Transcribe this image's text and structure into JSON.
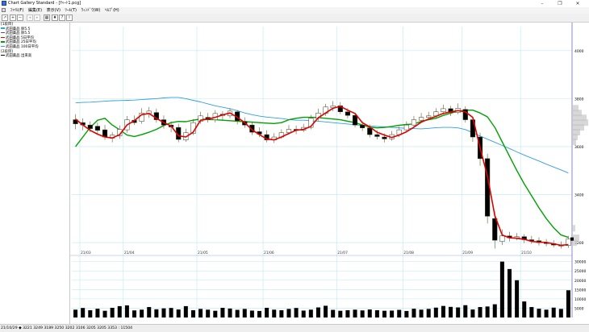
{
  "window": {
    "title": "Chart Gallery Standard - [ﾁｬｰﾄ1.pcg]",
    "controls": [
      "–",
      "❐",
      "✕"
    ]
  },
  "menu": {
    "items": [
      "ﾌｧｲﾙ(F)",
      "編集(E)",
      "表示(V)",
      "ﾂｰﾙ(T)",
      "ｳｨﾝﾄﾞｳ(W)",
      "ﾍﾙﾌﾟ(H)"
    ]
  },
  "toolbar": {
    "icons": [
      "chart-type-icon",
      "zoom-in-icon",
      "zoom-out-icon",
      "back-icon",
      "forward-icon",
      "settings-icon",
      "pin-icon",
      "help-icon",
      "info-icon"
    ]
  },
  "left_panel": {
    "rows": [
      {
        "text": "[1段目]",
        "color": ""
      },
      {
        "text": "武田薬品 卵5.5",
        "color": "#2ea0e0"
      },
      {
        "text": "武田薬品 卵5.5",
        "color": "#555555"
      },
      {
        "text": "武田薬品 5日平均",
        "color": "#e00000"
      },
      {
        "text": "武田薬品 25日平均",
        "color": "#00a000"
      },
      {
        "text": "武田薬品 100日平均",
        "color": "#2ea0e0"
      },
      {
        "text": "[2段目]",
        "color": ""
      },
      {
        "text": "武田薬品 出来高",
        "color": "#000000"
      }
    ]
  },
  "chart_data": {
    "type": "candlestick",
    "x_labels": [
      "21/03",
      "21/04",
      "21/05",
      "21/06",
      "21/07",
      "21/08",
      "21/09",
      "21/10"
    ],
    "y_tick_labels": [
      "4000",
      "3800",
      "3600",
      "3400",
      "3200"
    ],
    "volume_tick_labels": [
      "30000",
      "25000",
      "20000",
      "15000",
      "10000",
      "5000"
    ],
    "colors": {
      "ma5": "#e00000",
      "ma25": "#00a000",
      "ma100": "#2ea0e0",
      "candle_up": "#ffffff",
      "candle_down": "#000000",
      "volume": "#000000",
      "grid": "#bfe7f0"
    },
    "ma5": [
      3715,
      3690,
      3668,
      3652,
      3640,
      3636,
      3650,
      3690,
      3708,
      3733,
      3738,
      3718,
      3700,
      3686,
      3645,
      3640,
      3660,
      3710,
      3715,
      3722,
      3732,
      3740,
      3722,
      3700,
      3670,
      3650,
      3632,
      3628,
      3640,
      3655,
      3668,
      3672,
      3684,
      3720,
      3740,
      3760,
      3768,
      3752,
      3738,
      3700,
      3682,
      3660,
      3648,
      3638,
      3648,
      3662,
      3681,
      3702,
      3715,
      3726,
      3738,
      3745,
      3750,
      3745,
      3722,
      3595,
      3478,
      3312,
      3232,
      3220,
      3218,
      3214,
      3205,
      3202,
      3201,
      3195,
      3189,
      3192
    ],
    "ma25": [
      3600,
      3640,
      3680,
      3710,
      3718,
      3690,
      3670,
      3648,
      3642,
      3650,
      3660,
      3672,
      3688,
      3700,
      3705,
      3704,
      3710,
      3715,
      3713,
      3712,
      3710,
      3708,
      3706,
      3704,
      3702,
      3700,
      3698,
      3696,
      3700,
      3712,
      3718,
      3722,
      3722,
      3721,
      3718,
      3715,
      3712,
      3706,
      3700,
      3690,
      3681,
      3678,
      3680,
      3684,
      3689,
      3692,
      3694,
      3705,
      3712,
      3718,
      3730,
      3739,
      3748,
      3752,
      3752,
      3740,
      3724,
      3680,
      3620,
      3560,
      3500,
      3445,
      3395,
      3345,
      3300,
      3262,
      3232,
      3222
    ],
    "ma100": [
      3782,
      3784,
      3785,
      3787,
      3789,
      3791,
      3792,
      3793,
      3794,
      3796,
      3798,
      3800,
      3803,
      3805,
      3805,
      3800,
      3793,
      3786,
      3778,
      3770,
      3764,
      3758,
      3750,
      3740,
      3733,
      3727,
      3723,
      3720,
      3717,
      3713,
      3710,
      3710,
      3708,
      3706,
      3703,
      3700,
      3697,
      3694,
      3691,
      3688,
      3686,
      3684,
      3682,
      3680,
      3678,
      3676,
      3675,
      3674,
      3676,
      3679,
      3680,
      3680,
      3678,
      3671,
      3658,
      3644,
      3631,
      3618,
      3605,
      3592,
      3578,
      3565,
      3552,
      3540,
      3527,
      3515,
      3503,
      3490
    ],
    "candles": [
      {
        "o": 3712,
        "c": 3695,
        "h": 3735,
        "l": 3672
      },
      {
        "o": 3700,
        "c": 3690,
        "h": 3718,
        "l": 3668
      },
      {
        "o": 3690,
        "c": 3675,
        "h": 3705,
        "l": 3660
      },
      {
        "o": 3685,
        "c": 3668,
        "h": 3700,
        "l": 3650
      },
      {
        "o": 3670,
        "c": 3640,
        "h": 3690,
        "l": 3628
      },
      {
        "o": 3635,
        "c": 3648,
        "h": 3660,
        "l": 3618
      },
      {
        "o": 3645,
        "c": 3672,
        "h": 3688,
        "l": 3632
      },
      {
        "o": 3670,
        "c": 3712,
        "h": 3728,
        "l": 3658
      },
      {
        "o": 3710,
        "c": 3700,
        "h": 3730,
        "l": 3690
      },
      {
        "o": 3705,
        "c": 3740,
        "h": 3760,
        "l": 3695
      },
      {
        "o": 3738,
        "c": 3748,
        "h": 3765,
        "l": 3720
      },
      {
        "o": 3742,
        "c": 3712,
        "h": 3758,
        "l": 3700
      },
      {
        "o": 3712,
        "c": 3690,
        "h": 3730,
        "l": 3675
      },
      {
        "o": 3690,
        "c": 3682,
        "h": 3705,
        "l": 3660
      },
      {
        "o": 3680,
        "c": 3630,
        "h": 3695,
        "l": 3618
      },
      {
        "o": 3628,
        "c": 3658,
        "h": 3675,
        "l": 3620
      },
      {
        "o": 3655,
        "c": 3700,
        "h": 3715,
        "l": 3648
      },
      {
        "o": 3705,
        "c": 3728,
        "h": 3745,
        "l": 3695
      },
      {
        "o": 3722,
        "c": 3712,
        "h": 3740,
        "l": 3700
      },
      {
        "o": 3712,
        "c": 3738,
        "h": 3752,
        "l": 3700
      },
      {
        "o": 3735,
        "c": 3730,
        "h": 3748,
        "l": 3712
      },
      {
        "o": 3728,
        "c": 3748,
        "h": 3760,
        "l": 3718
      },
      {
        "o": 3745,
        "c": 3708,
        "h": 3752,
        "l": 3692
      },
      {
        "o": 3705,
        "c": 3690,
        "h": 3722,
        "l": 3678
      },
      {
        "o": 3690,
        "c": 3660,
        "h": 3705,
        "l": 3648
      },
      {
        "o": 3662,
        "c": 3652,
        "h": 3680,
        "l": 3640
      },
      {
        "o": 3650,
        "c": 3628,
        "h": 3668,
        "l": 3618
      },
      {
        "o": 3628,
        "c": 3640,
        "h": 3656,
        "l": 3615
      },
      {
        "o": 3640,
        "c": 3658,
        "h": 3672,
        "l": 3632
      },
      {
        "o": 3658,
        "c": 3672,
        "h": 3690,
        "l": 3650
      },
      {
        "o": 3672,
        "c": 3668,
        "h": 3688,
        "l": 3652
      },
      {
        "o": 3668,
        "c": 3680,
        "h": 3695,
        "l": 3660
      },
      {
        "o": 3680,
        "c": 3718,
        "h": 3732,
        "l": 3672
      },
      {
        "o": 3718,
        "c": 3740,
        "h": 3758,
        "l": 3708
      },
      {
        "o": 3738,
        "c": 3765,
        "h": 3778,
        "l": 3728
      },
      {
        "o": 3762,
        "c": 3770,
        "h": 3790,
        "l": 3748
      },
      {
        "o": 3770,
        "c": 3745,
        "h": 3785,
        "l": 3735
      },
      {
        "o": 3745,
        "c": 3730,
        "h": 3760,
        "l": 3718
      },
      {
        "o": 3730,
        "c": 3690,
        "h": 3742,
        "l": 3680
      },
      {
        "o": 3690,
        "c": 3678,
        "h": 3705,
        "l": 3665
      },
      {
        "o": 3678,
        "c": 3650,
        "h": 3692,
        "l": 3638
      },
      {
        "o": 3650,
        "c": 3642,
        "h": 3668,
        "l": 3630
      },
      {
        "o": 3640,
        "c": 3632,
        "h": 3655,
        "l": 3618
      },
      {
        "o": 3632,
        "c": 3650,
        "h": 3665,
        "l": 3625
      },
      {
        "o": 3650,
        "c": 3670,
        "h": 3685,
        "l": 3640
      },
      {
        "o": 3670,
        "c": 3690,
        "h": 3705,
        "l": 3660
      },
      {
        "o": 3690,
        "c": 3712,
        "h": 3728,
        "l": 3680
      },
      {
        "o": 3710,
        "c": 3722,
        "h": 3740,
        "l": 3700
      },
      {
        "o": 3722,
        "c": 3728,
        "h": 3745,
        "l": 3712
      },
      {
        "o": 3728,
        "c": 3745,
        "h": 3760,
        "l": 3718
      },
      {
        "o": 3745,
        "c": 3758,
        "h": 3775,
        "l": 3735
      },
      {
        "o": 3758,
        "c": 3742,
        "h": 3770,
        "l": 3728
      },
      {
        "o": 3742,
        "c": 3760,
        "h": 3780,
        "l": 3735
      },
      {
        "o": 3755,
        "c": 3712,
        "h": 3768,
        "l": 3700
      },
      {
        "o": 3712,
        "c": 3640,
        "h": 3722,
        "l": 3620
      },
      {
        "o": 3640,
        "c": 3550,
        "h": 3658,
        "l": 3520
      },
      {
        "o": 3550,
        "c": 3310,
        "h": 3570,
        "l": 3280
      },
      {
        "o": 3300,
        "c": 3210,
        "h": 3330,
        "l": 3175
      },
      {
        "o": 3205,
        "c": 3228,
        "h": 3255,
        "l": 3190
      },
      {
        "o": 3228,
        "c": 3220,
        "h": 3245,
        "l": 3205
      },
      {
        "o": 3220,
        "c": 3225,
        "h": 3240,
        "l": 3210
      },
      {
        "o": 3225,
        "c": 3212,
        "h": 3235,
        "l": 3198
      },
      {
        "o": 3212,
        "c": 3208,
        "h": 3228,
        "l": 3195
      },
      {
        "o": 3208,
        "c": 3200,
        "h": 3222,
        "l": 3188
      },
      {
        "o": 3200,
        "c": 3196,
        "h": 3215,
        "l": 3185
      },
      {
        "o": 3196,
        "c": 3190,
        "h": 3210,
        "l": 3180
      },
      {
        "o": 3190,
        "c": 3186,
        "h": 3205,
        "l": 3175
      },
      {
        "o": 3188,
        "c": 3215,
        "h": 3228,
        "l": 3178
      }
    ],
    "volume": [
      4200,
      5100,
      3900,
      4700,
      3600,
      5200,
      6100,
      6500,
      3800,
      4200,
      5600,
      4400,
      4900,
      5100,
      4300,
      6100,
      3900,
      4600,
      4200,
      3600,
      5200,
      4800,
      4100,
      4600,
      3700,
      3500,
      5200,
      4200,
      3900,
      4600,
      5100,
      3700,
      4200,
      5400,
      6300,
      4100,
      3600,
      3900,
      4200,
      3800,
      4300,
      3900,
      3600,
      3700,
      4100,
      3500,
      4700,
      4200,
      4600,
      5300,
      6200,
      5700,
      5400,
      6600,
      4300,
      5600,
      5900,
      7100,
      30000,
      26000,
      20000,
      8600,
      5600,
      4700,
      4200,
      5300,
      4600,
      14600
    ],
    "price_range": [
      3150,
      4100
    ],
    "volume_range": [
      0,
      32000
    ],
    "grid": true
  },
  "status": {
    "text": "21/10/29 ◆ 3221 3249 3189 3250 3202 3106 3205 3205 3353 : 11504"
  }
}
